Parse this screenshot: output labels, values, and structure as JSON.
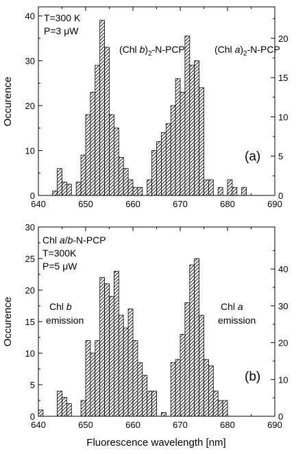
{
  "x_axis_title": "Fluorescence wavelength [nm]",
  "chart_data": [
    {
      "type": "bar",
      "panel_label": "(a)",
      "xlim": [
        640,
        690
      ],
      "x_ticks": [
        "640",
        "650",
        "660",
        "670",
        "680",
        "690"
      ],
      "ylim_left": [
        0,
        42
      ],
      "y_ticks_left": [
        "0",
        "10",
        "20",
        "30",
        "40"
      ],
      "ylabel": "Occurence",
      "ylim_right": [
        0,
        24
      ],
      "y_ticks_right": [
        "0",
        "5",
        "10",
        "15",
        "20"
      ],
      "bin_width": 1,
      "annotations": {
        "conditions": [
          "T=300 K",
          "P=3 μW"
        ],
        "series_1": "(Chl b)2-N-PCP",
        "series_2": "(Chl a)2-N-PCP"
      },
      "bars": [
        {
          "x": 643,
          "y": 1
        },
        {
          "x": 644,
          "y": 6
        },
        {
          "x": 645,
          "y": 3
        },
        {
          "x": 646,
          "y": 2.5
        },
        {
          "x": 648,
          "y": 3
        },
        {
          "x": 649,
          "y": 9
        },
        {
          "x": 650,
          "y": 18
        },
        {
          "x": 651,
          "y": 23
        },
        {
          "x": 652,
          "y": 29
        },
        {
          "x": 653,
          "y": 39
        },
        {
          "x": 654,
          "y": 33
        },
        {
          "x": 655,
          "y": 18
        },
        {
          "x": 656,
          "y": 15
        },
        {
          "x": 657,
          "y": 8.5
        },
        {
          "x": 658,
          "y": 6
        },
        {
          "x": 659,
          "y": 3.5
        },
        {
          "x": 660,
          "y": 1.8
        },
        {
          "x": 661,
          "y": 1.8
        },
        {
          "x": 663,
          "y": 3.5
        },
        {
          "x": 664,
          "y": 10
        },
        {
          "x": 665,
          "y": 12
        },
        {
          "x": 666,
          "y": 14
        },
        {
          "x": 667,
          "y": 16
        },
        {
          "x": 668,
          "y": 20
        },
        {
          "x": 669,
          "y": 26
        },
        {
          "x": 670,
          "y": 23
        },
        {
          "x": 671,
          "y": 35.5
        },
        {
          "x": 672,
          "y": 29
        },
        {
          "x": 673,
          "y": 30
        },
        {
          "x": 674,
          "y": 24
        },
        {
          "x": 675,
          "y": 3.5
        },
        {
          "x": 676,
          "y": 3.5
        },
        {
          "x": 678,
          "y": 1.8
        },
        {
          "x": 680,
          "y": 3.5
        },
        {
          "x": 681,
          "y": 1.8
        },
        {
          "x": 683,
          "y": 1.8
        }
      ]
    },
    {
      "type": "bar",
      "panel_label": "(b)",
      "xlim": [
        640,
        690
      ],
      "x_ticks": [
        "640",
        "650",
        "660",
        "670",
        "680",
        "690"
      ],
      "ylim_left": [
        0,
        30
      ],
      "y_ticks_left": [
        "0",
        "5",
        "10",
        "15",
        "20",
        "25",
        "30"
      ],
      "ylabel": "Occurence",
      "ylim_right": [
        0,
        51.4
      ],
      "y_ticks_right": [
        "0",
        "10",
        "20",
        "30",
        "40"
      ],
      "bin_width": 1,
      "annotations": {
        "conditions": [
          "Chl a/b-N-PCP",
          "T=300K",
          "P=5 μW"
        ],
        "series_1": [
          "Chl b",
          "emission"
        ],
        "series_2": [
          "Chl a",
          "emission"
        ]
      },
      "bars": [
        {
          "x": 640,
          "y": 1
        },
        {
          "x": 644,
          "y": 4
        },
        {
          "x": 645,
          "y": 3
        },
        {
          "x": 646,
          "y": 2
        },
        {
          "x": 649,
          "y": 2.5
        },
        {
          "x": 650,
          "y": 12
        },
        {
          "x": 651,
          "y": 10
        },
        {
          "x": 652,
          "y": 12
        },
        {
          "x": 653,
          "y": 22
        },
        {
          "x": 654,
          "y": 21
        },
        {
          "x": 655,
          "y": 19
        },
        {
          "x": 656,
          "y": 23
        },
        {
          "x": 657,
          "y": 16
        },
        {
          "x": 658,
          "y": 14
        },
        {
          "x": 659,
          "y": 17
        },
        {
          "x": 660,
          "y": 12
        },
        {
          "x": 661,
          "y": 8.5
        },
        {
          "x": 662,
          "y": 6.5
        },
        {
          "x": 663,
          "y": 4
        },
        {
          "x": 664,
          "y": 4
        },
        {
          "x": 666,
          "y": 0.6
        },
        {
          "x": 668,
          "y": 8.5
        },
        {
          "x": 669,
          "y": 9
        },
        {
          "x": 670,
          "y": 13
        },
        {
          "x": 671,
          "y": 18
        },
        {
          "x": 672,
          "y": 24
        },
        {
          "x": 673,
          "y": 25
        },
        {
          "x": 674,
          "y": 16
        },
        {
          "x": 675,
          "y": 9
        },
        {
          "x": 676,
          "y": 8
        },
        {
          "x": 677,
          "y": 4
        },
        {
          "x": 678,
          "y": 2.5
        },
        {
          "x": 679,
          "y": 2.5
        }
      ]
    }
  ]
}
